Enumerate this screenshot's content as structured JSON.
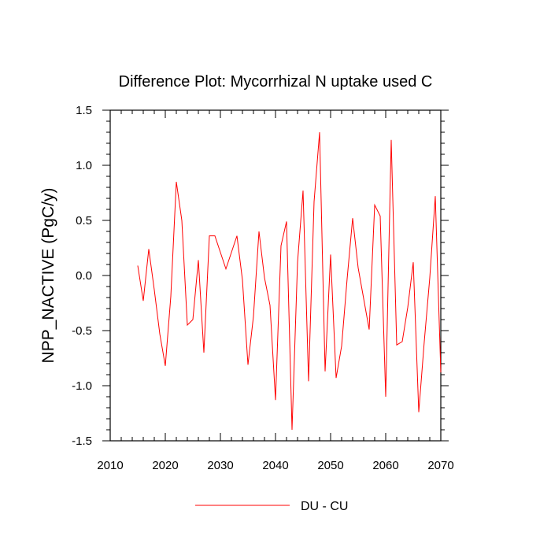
{
  "chart_data": {
    "type": "line",
    "title": "Difference Plot: Mycorrhizal N uptake used C",
    "xlabel": "",
    "ylabel": "NPP_NACTIVE  (PgC/y)",
    "xlim": [
      2010,
      2070
    ],
    "ylim": [
      -1.5,
      1.5
    ],
    "x_ticks": [
      2010,
      2020,
      2030,
      2040,
      2050,
      2060,
      2070
    ],
    "x_tick_labels": [
      "2010",
      "2020",
      "2030",
      "2040",
      "2050",
      "2060",
      "2070"
    ],
    "y_ticks": [
      -1.5,
      -1.0,
      -0.5,
      0.0,
      0.5,
      1.0,
      1.5
    ],
    "y_tick_labels": [
      "-1.5",
      "-1.0",
      "-0.5",
      "0.0",
      "0.5",
      "1.0",
      "1.5"
    ],
    "legend_placement": "bottom-center",
    "series": [
      {
        "name": "DU - CU",
        "color": "#ff0000",
        "x": [
          2015,
          2016,
          2017,
          2018,
          2019,
          2020,
          2021,
          2022,
          2023,
          2024,
          2025,
          2026,
          2027,
          2028,
          2029,
          2030,
          2031,
          2032,
          2033,
          2034,
          2035,
          2036,
          2037,
          2038,
          2039,
          2040,
          2041,
          2042,
          2043,
          2044,
          2045,
          2046,
          2047,
          2048,
          2049,
          2050,
          2051,
          2052,
          2053,
          2054,
          2055,
          2056,
          2057,
          2058,
          2059,
          2060,
          2061,
          2062,
          2063,
          2064,
          2065,
          2066,
          2067,
          2068,
          2069,
          2070
        ],
        "values": [
          0.09,
          -0.23,
          0.24,
          -0.13,
          -0.53,
          -0.82,
          -0.19,
          0.85,
          0.5,
          -0.45,
          -0.4,
          0.14,
          -0.7,
          0.36,
          0.36,
          0.21,
          0.06,
          0.21,
          0.36,
          -0.04,
          -0.81,
          -0.37,
          0.4,
          -0.02,
          -0.27,
          -1.13,
          0.27,
          0.49,
          -1.4,
          0.12,
          0.77,
          -0.96,
          0.67,
          1.3,
          -0.87,
          0.19,
          -0.93,
          -0.64,
          -0.03,
          0.52,
          0.07,
          -0.21,
          -0.49,
          0.64,
          0.54,
          -1.1,
          1.23,
          -0.63,
          -0.6,
          -0.29,
          0.12,
          -1.24,
          -0.6,
          -0.02,
          0.72,
          -0.88
        ]
      }
    ]
  }
}
